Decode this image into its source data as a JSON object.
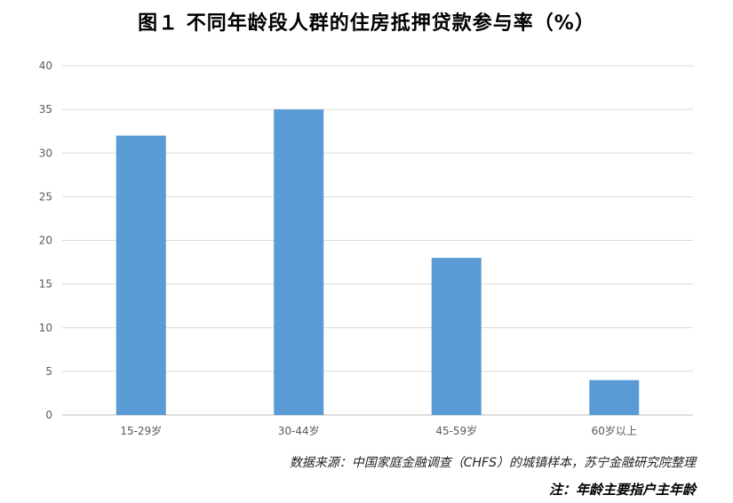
{
  "chart_data": {
    "type": "bar",
    "title": "图１  不同年龄段人群的住房抵押贷款参与率（%）",
    "categories": [
      "15-29岁",
      "30-44岁",
      "45-59岁",
      "60岁以上"
    ],
    "values": [
      32,
      35,
      18,
      4
    ],
    "ylim": [
      0,
      40
    ],
    "yticks": [
      0,
      5,
      10,
      15,
      20,
      25,
      30,
      35,
      40
    ],
    "grid": true,
    "bar_color": "#5b9bd5"
  },
  "source": "数据来源：中国家庭金融调查（CHFS）的城镇样本，苏宁金融研究院整理",
  "note": "注：年龄主要指户主年龄"
}
